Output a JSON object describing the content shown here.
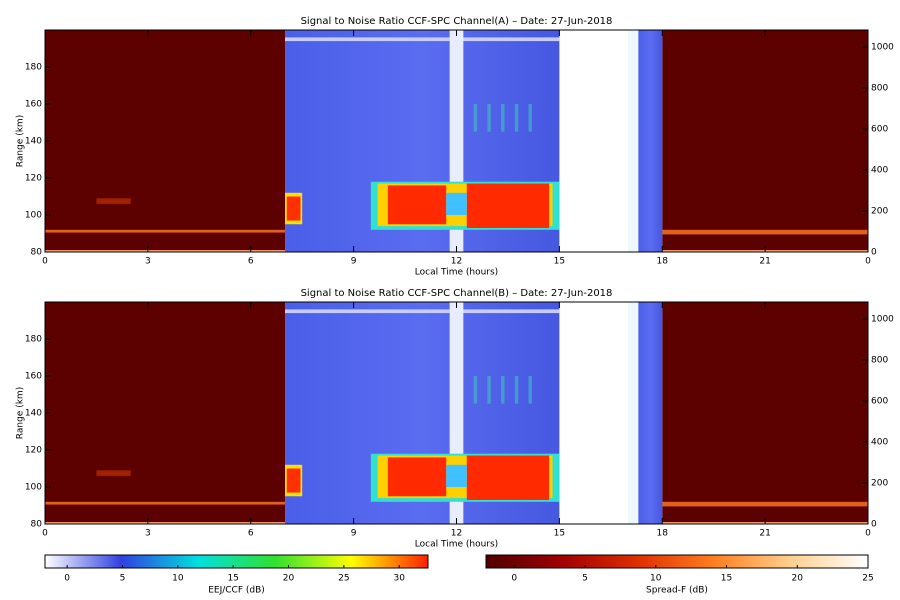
{
  "chart_data": [
    {
      "type": "heatmap",
      "title": "Signal to Noise Ratio CCF-SPC Channel(A) – Date: 27-Jun-2018",
      "xlabel": "Local Time (hours)",
      "ylabel": "Range (km)",
      "xlim": [
        0,
        24
      ],
      "xticks": [
        0,
        3,
        6,
        9,
        12,
        15,
        18,
        21,
        {
          "value": 24,
          "label": "0"
        }
      ],
      "ylim": [
        80,
        200
      ],
      "yticks": [
        80,
        100,
        120,
        140,
        160,
        180
      ],
      "y2lim": [
        0,
        1083
      ],
      "y2ticks": [
        0,
        200,
        400,
        600,
        800,
        1000
      ]
    },
    {
      "type": "heatmap",
      "title": "Signal to Noise Ratio CCF-SPC Channel(B) – Date: 27-Jun-2018",
      "xlabel": "Local Time (hours)",
      "ylabel": "Range (km)",
      "xlim": [
        0,
        24
      ],
      "xticks": [
        0,
        3,
        6,
        9,
        12,
        15,
        18,
        21,
        {
          "value": 24,
          "label": "0"
        }
      ],
      "ylim": [
        80,
        200
      ],
      "yticks": [
        80,
        100,
        120,
        140,
        160,
        180
      ],
      "y2lim": [
        0,
        1083
      ],
      "y2ticks": [
        0,
        200,
        400,
        600,
        800,
        1000
      ]
    },
    {
      "type": "colorbar",
      "label": "EEJ/CCF (dB)",
      "xlim": [
        -2,
        32.6
      ],
      "xticks": [
        0,
        5,
        10,
        15,
        20,
        25,
        30
      ],
      "colors": [
        "#ffffff",
        "#3040e0",
        "#00e0e0",
        "#30e030",
        "#ffff00",
        "#ff2000"
      ]
    },
    {
      "type": "colorbar",
      "label": "Spread-F (dB)",
      "xlim": [
        -2,
        25
      ],
      "xticks": [
        0,
        5,
        10,
        15,
        20,
        25
      ],
      "colors": [
        "#500000",
        "#a00000",
        "#e03000",
        "#ff8020",
        "#ffd090",
        "#ffffff"
      ]
    }
  ]
}
